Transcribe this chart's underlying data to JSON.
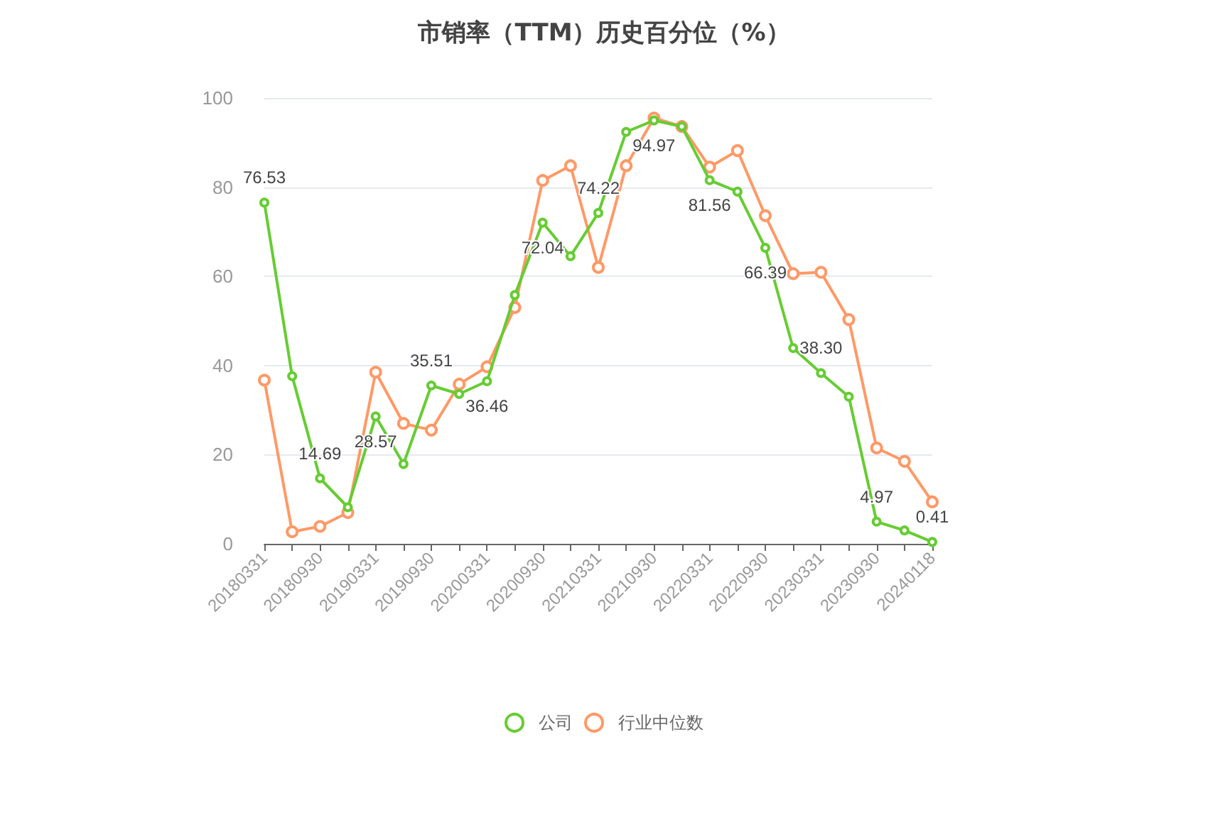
{
  "chart_data": {
    "type": "line",
    "title": "市销率（TTM）历史百分位（%）",
    "categories": [
      "20180331",
      null,
      "20180930",
      null,
      "20190331",
      null,
      "20190930",
      null,
      "20200331",
      null,
      "20200930",
      null,
      "20210331",
      null,
      "20210930",
      null,
      "20220331",
      null,
      "20220930",
      null,
      "20230331",
      null,
      "20230930",
      null,
      "20240118"
    ],
    "series": [
      {
        "name": "公司",
        "color": "#66cc33",
        "values": [
          76.53,
          37.6,
          14.69,
          8.2,
          28.57,
          17.9,
          35.51,
          33.6,
          36.46,
          55.8,
          72.04,
          64.5,
          74.22,
          92.4,
          94.97,
          93.6,
          81.56,
          79,
          66.39,
          43.9,
          38.3,
          33,
          4.97,
          3,
          0.41
        ],
        "value_labels": [
          "76.53",
          null,
          "14.69",
          null,
          "28.57",
          null,
          "35.51",
          null,
          "36.46",
          null,
          "72.04",
          null,
          "74.22",
          null,
          "94.97",
          null,
          "81.56",
          null,
          "66.39",
          null,
          "38.30",
          null,
          "4.97",
          null,
          "0.41"
        ]
      },
      {
        "name": "行业中位数",
        "color": "#ff9966",
        "values": [
          36.7,
          2.7,
          3.9,
          7,
          38.5,
          27,
          25.5,
          35.8,
          39.7,
          53,
          81.5,
          84.8,
          62,
          84.8,
          95.5,
          93.6,
          84.5,
          88.2,
          73.6,
          60.6,
          60.9,
          50.3,
          21.5,
          18.5,
          9.4
        ]
      }
    ],
    "ylim": [
      0,
      100
    ],
    "yticks": [
      0,
      20,
      40,
      60,
      80,
      100
    ],
    "grid": "y",
    "legend": "bottom",
    "marker": "circle",
    "line_style": "solid"
  }
}
